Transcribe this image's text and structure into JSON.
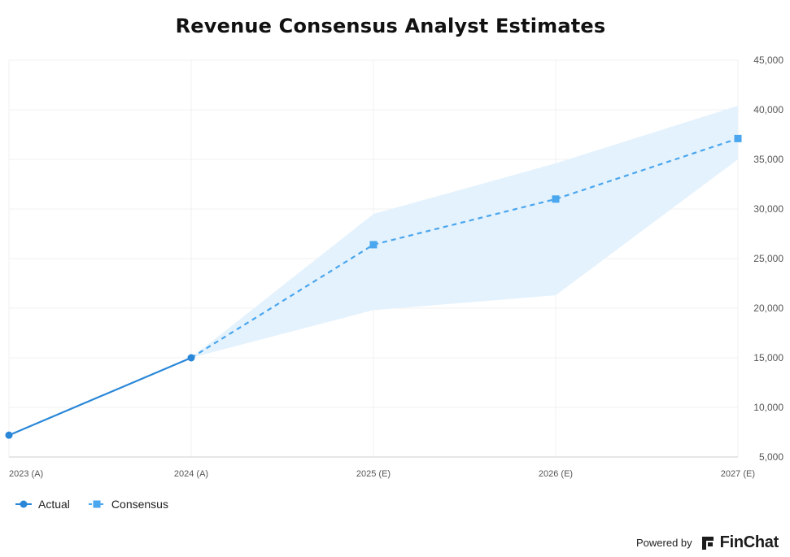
{
  "chart_data": {
    "type": "line",
    "title": "Revenue Consensus Analyst Estimates",
    "categories": [
      "2023 (A)",
      "2024 (A)",
      "2025 (E)",
      "2026 (E)",
      "2027 (E)"
    ],
    "series": [
      {
        "name": "Actual",
        "color": "#2a87d8",
        "marker": "circle",
        "style": "solid",
        "values": [
          7200,
          15000,
          null,
          null,
          null
        ]
      },
      {
        "name": "Consensus",
        "color": "#4aa6ee",
        "marker": "square",
        "style": "dashed",
        "values": [
          null,
          15000,
          26400,
          31000,
          37100
        ]
      }
    ],
    "range_band": {
      "name": "Estimate range",
      "color": "#e4f2fd",
      "high": [
        null,
        15000,
        29500,
        34600,
        40400
      ],
      "low": [
        null,
        15000,
        19800,
        21300,
        35000
      ]
    },
    "ylim": [
      5000,
      45000
    ],
    "yticks": [
      "5,000",
      "10,000",
      "15,000",
      "20,000",
      "25,000",
      "30,000",
      "35,000",
      "40,000",
      "45,000"
    ],
    "ytick_values": [
      5000,
      10000,
      15000,
      20000,
      25000,
      30000,
      35000,
      40000,
      45000
    ],
    "y_axis_side": "right",
    "grid": true,
    "legend": "bottom-left"
  },
  "footer": {
    "powered_by": "Powered by",
    "brand": "FinChat",
    "logo_icon": "finchat-logo-icon"
  }
}
